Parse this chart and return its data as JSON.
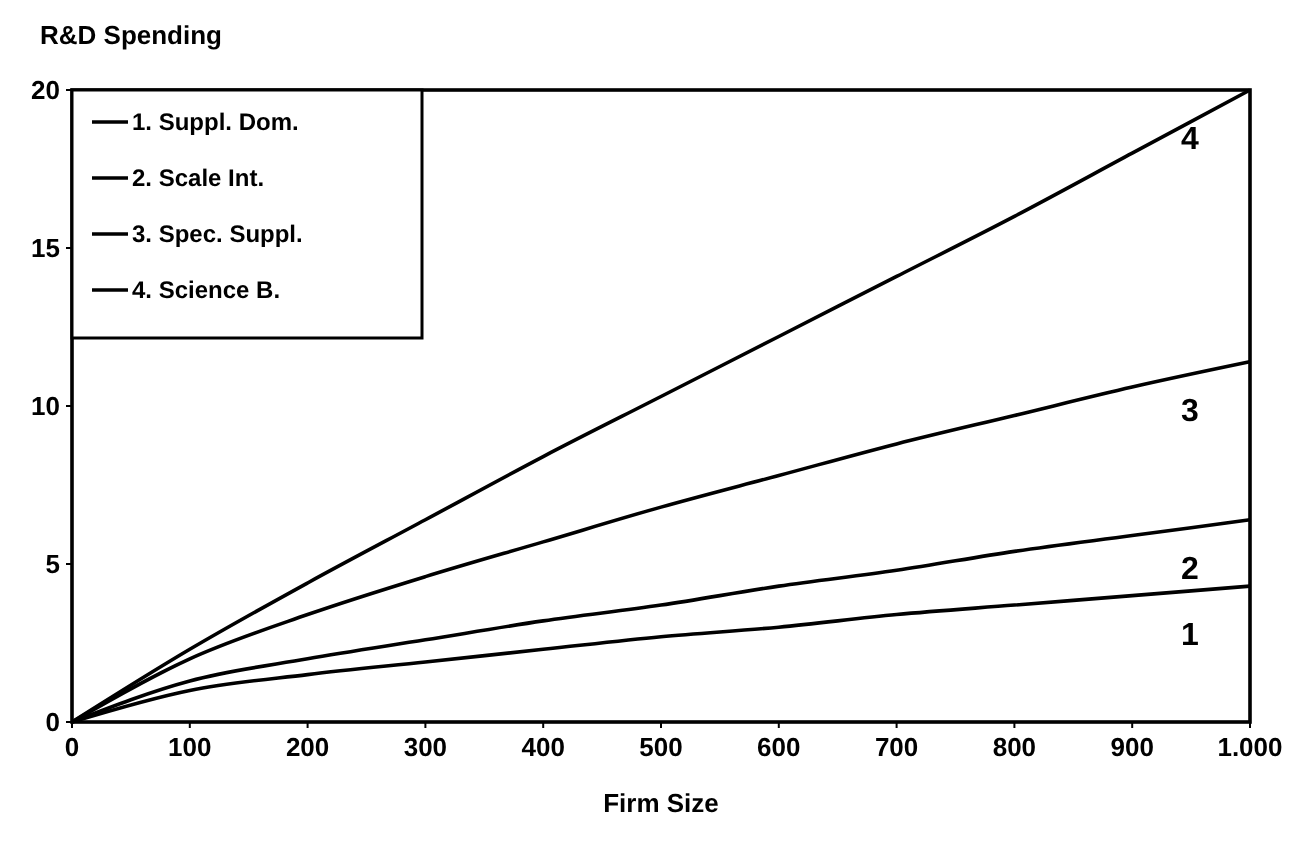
{
  "chart_data": {
    "type": "line",
    "ylabel": "R&D Spending",
    "xlabel": "Firm Size",
    "x": [
      0,
      100,
      200,
      300,
      400,
      500,
      600,
      700,
      800,
      900,
      1000
    ],
    "series": [
      {
        "name": "1. Suppl. Dom.",
        "color": "#000000",
        "values": [
          0,
          1.0,
          1.5,
          1.9,
          2.3,
          2.7,
          3.0,
          3.4,
          3.7,
          4.0,
          4.3
        ]
      },
      {
        "name": "2. Scale Int.",
        "color": "#000000",
        "values": [
          0,
          1.3,
          2.0,
          2.6,
          3.2,
          3.7,
          4.3,
          4.8,
          5.4,
          5.9,
          6.4
        ]
      },
      {
        "name": "3. Spec. Suppl.",
        "color": "#000000",
        "values": [
          0,
          2.0,
          3.4,
          4.6,
          5.7,
          6.8,
          7.8,
          8.8,
          9.7,
          10.6,
          11.4
        ]
      },
      {
        "name": "4. Science B.",
        "color": "#000000",
        "values": [
          0,
          2.3,
          4.4,
          6.4,
          8.4,
          10.3,
          12.2,
          14.1,
          16.0,
          18.0,
          20
        ]
      }
    ],
    "xlim": [
      0,
      1000
    ],
    "xticks": [
      0,
      100,
      200,
      300,
      400,
      500,
      600,
      700,
      800,
      900,
      {
        "value": 1000,
        "label": "1.000"
      }
    ],
    "ylim": [
      0,
      20
    ],
    "yticks": [
      0,
      5,
      10,
      15,
      20
    ],
    "annotations": [
      "1",
      "2",
      "3",
      "4"
    ],
    "legend": "top left",
    "grid": false,
    "marker": "none",
    "line_style": "solid"
  }
}
